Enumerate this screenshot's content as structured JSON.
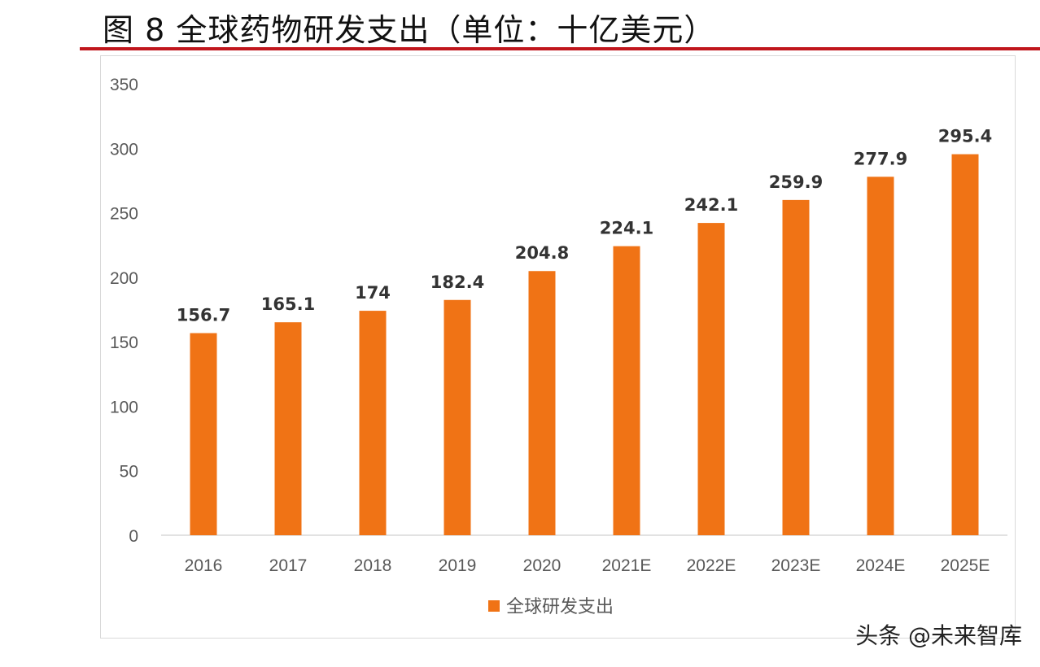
{
  "title": "图 8 全球药物研发支出（单位：十亿美元）",
  "watermark": "头条 @未来智库",
  "chart_data": {
    "type": "bar",
    "title": "",
    "xlabel": "",
    "ylabel": "",
    "categories": [
      "2016",
      "2017",
      "2018",
      "2019",
      "2020",
      "2021E",
      "2022E",
      "2023E",
      "2024E",
      "2025E"
    ],
    "series": [
      {
        "name": "全球研发支出",
        "values": [
          156.7,
          165.1,
          174,
          182.4,
          204.8,
          224.1,
          242.1,
          259.9,
          277.9,
          295.4
        ],
        "color": "#f07315"
      }
    ],
    "data_labels": [
      "156.7",
      "165.1",
      "174",
      "182.4",
      "204.8",
      "224.1",
      "242.1",
      "259.9",
      "277.9",
      "295.4"
    ],
    "ylim": [
      0,
      350
    ],
    "yticks": [
      0,
      50,
      100,
      150,
      200,
      250,
      300,
      350
    ],
    "grid": false,
    "legend": "bottom"
  }
}
